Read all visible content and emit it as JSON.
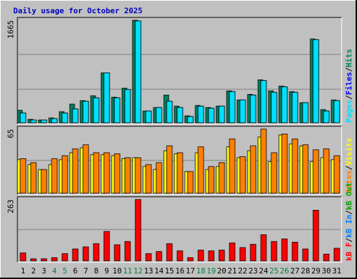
{
  "title": "Daily usage for October 2025",
  "legend_separator": "/",
  "categories": [
    "1",
    "2",
    "3",
    "4",
    "5",
    "6",
    "7",
    "8",
    "9",
    "10",
    "11",
    "12",
    "13",
    "14",
    "15",
    "16",
    "17",
    "18",
    "19",
    "20",
    "21",
    "22",
    "23",
    "24",
    "25",
    "26",
    "27",
    "28",
    "29",
    "30",
    "31"
  ],
  "highlight": [
    3,
    4,
    10,
    11,
    17,
    18,
    24,
    25
  ],
  "highlight_color": "#008040",
  "chart_data": [
    {
      "type": "bar",
      "ylim": [
        0,
        1665
      ],
      "yticks": [
        1665
      ],
      "series": [
        {
          "name": "Hits",
          "color": "#00805c",
          "values": [
            203,
            56,
            45,
            79,
            180,
            304,
            360,
            439,
            810,
            416,
            563,
            1665,
            191,
            248,
            450,
            270,
            113,
            281,
            248,
            270,
            518,
            371,
            461,
            698,
            518,
            596,
            506,
            326,
            1361,
            214,
            371
          ]
        },
        {
          "name": "Files",
          "color": "#0000ff",
          "values": [
            158,
            45,
            45,
            68,
            158,
            225,
            349,
            405,
            810,
            405,
            540,
            1654,
            191,
            248,
            349,
            248,
            101,
            270,
            236,
            270,
            506,
            371,
            450,
            686,
            495,
            585,
            495,
            326,
            1350,
            191,
            360
          ]
        },
        {
          "name": "Pages",
          "color": "#00e0ff",
          "values": [
            158,
            45,
            45,
            68,
            158,
            225,
            349,
            405,
            810,
            405,
            540,
            1654,
            191,
            248,
            349,
            248,
            101,
            270,
            236,
            270,
            506,
            371,
            450,
            686,
            495,
            585,
            495,
            326,
            1350,
            191,
            360
          ]
        }
      ]
    },
    {
      "type": "bar",
      "ylim": [
        0,
        65
      ],
      "yticks": [
        65
      ],
      "series": [
        {
          "name": "Visits",
          "color": "#ffff00",
          "values": [
            34,
            29,
            24,
            29,
            34,
            41,
            46,
            39,
            39,
            38,
            35,
            36,
            27,
            24,
            43,
            40,
            22,
            41,
            24,
            27,
            47,
            36,
            43,
            57,
            32,
            59,
            50,
            48,
            32,
            36,
            34
          ]
        },
        {
          "name": "Sites",
          "color": "#ff8000",
          "values": [
            35,
            31,
            24,
            35,
            38,
            45,
            49,
            41,
            41,
            40,
            36,
            36,
            29,
            31,
            48,
            41,
            22,
            47,
            27,
            31,
            55,
            37,
            48,
            65,
            41,
            60,
            55,
            49,
            44,
            45,
            38
          ]
        }
      ]
    },
    {
      "type": "bar",
      "ylim": [
        0,
        263
      ],
      "yticks": [
        263
      ],
      "series": [
        {
          "name": "kB Out",
          "color": "#00a000"
        },
        {
          "name": "kB In",
          "color": "#0080ff"
        },
        {
          "name": "kB F",
          "color": "#ff0000",
          "values": [
            34,
            9,
            9,
            14,
            31,
            51,
            60,
            74,
            126,
            69,
            83,
            263,
            31,
            40,
            74,
            43,
            14,
            46,
            43,
            46,
            77,
            57,
            71,
            112,
            83,
            94,
            80,
            51,
            217,
            29,
            54
          ]
        }
      ]
    }
  ]
}
